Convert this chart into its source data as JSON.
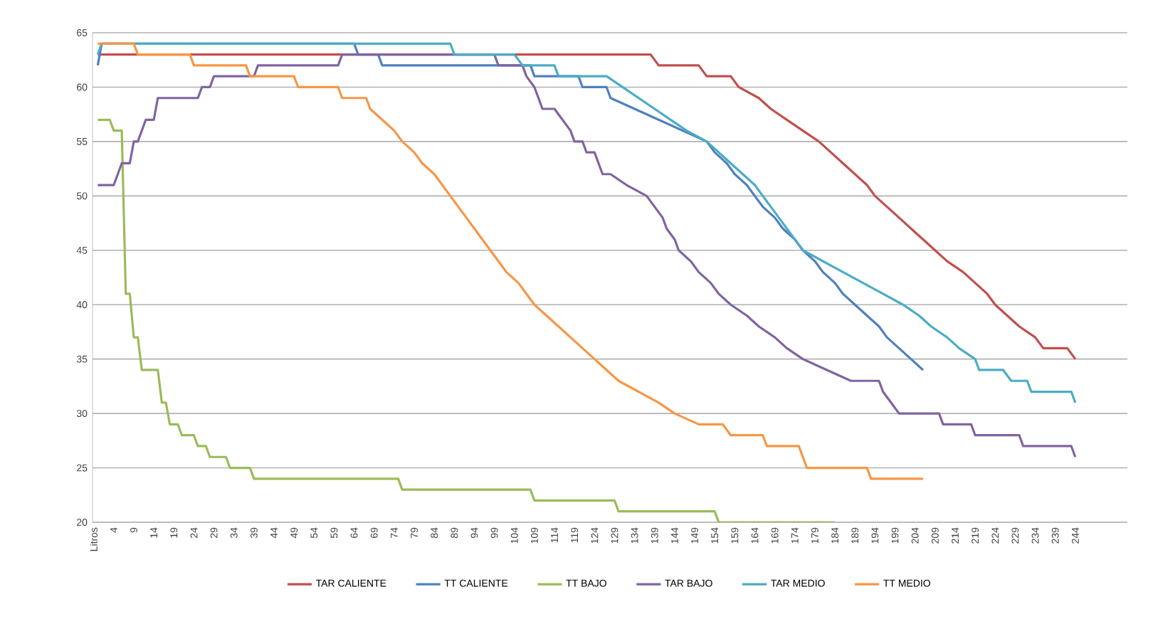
{
  "chart_data": {
    "type": "line",
    "xlim": [
      -1.3,
      257
    ],
    "xticks": [
      {
        "value": -1,
        "label": "Litros"
      },
      4,
      9,
      14,
      19,
      24,
      29,
      34,
      39,
      44,
      49,
      54,
      59,
      64,
      69,
      74,
      79,
      84,
      89,
      94,
      99,
      104,
      109,
      114,
      119,
      124,
      129,
      134,
      139,
      144,
      149,
      154,
      159,
      164,
      169,
      174,
      179,
      184,
      189,
      194,
      199,
      204,
      209,
      214,
      219,
      224,
      229,
      234,
      239,
      244
    ],
    "ylim": [
      20,
      65
    ],
    "yticks": [
      20,
      25,
      30,
      35,
      40,
      45,
      50,
      55,
      60,
      65
    ],
    "grid": "y",
    "legend": "bottom",
    "marker": "none",
    "series": [
      {
        "name": "TAR CALIENTE",
        "color": "#c0504d",
        "x": [
          0,
          138,
          140,
          150,
          152,
          158,
          160,
          165,
          168,
          172,
          176,
          180,
          183,
          186,
          189,
          192,
          194,
          197,
          200,
          203,
          206,
          209,
          212,
          216,
          219,
          222,
          224,
          227,
          230,
          234,
          236,
          242,
          244
        ],
        "values": [
          63,
          63,
          62,
          62,
          61,
          61,
          60,
          59,
          58,
          57,
          56,
          55,
          54,
          53,
          52,
          51,
          50,
          49,
          48,
          47,
          46,
          45,
          44,
          43,
          42,
          41,
          40,
          39,
          38,
          37,
          36,
          36,
          35
        ]
      },
      {
        "name": "TT CALIENTE",
        "color": "#4f81bd",
        "x": [
          0,
          1,
          64,
          65,
          70,
          71,
          108,
          109,
          120,
          121,
          127,
          128,
          134,
          140,
          146,
          152,
          154,
          157,
          159,
          162,
          164,
          166,
          169,
          171,
          174,
          176,
          179,
          181,
          184,
          186,
          189,
          192,
          195,
          197,
          200,
          203,
          206
        ],
        "values": [
          62,
          64,
          64,
          63,
          63,
          62,
          62,
          61,
          61,
          60,
          60,
          59,
          58,
          57,
          56,
          55,
          54,
          53,
          52,
          51,
          50,
          49,
          48,
          47,
          46,
          45,
          44,
          43,
          42,
          41,
          40,
          39,
          38,
          37,
          36,
          35,
          34
        ]
      },
      {
        "name": "TT BAJO",
        "color": "#9bbb59",
        "x": [
          0,
          3,
          4,
          6,
          7,
          8,
          9,
          10,
          11,
          15,
          16,
          17,
          18,
          20,
          21,
          24,
          25,
          27,
          28,
          32,
          33,
          38,
          39,
          75,
          76,
          108,
          109,
          129,
          130,
          154,
          155,
          184
        ],
        "values": [
          57,
          57,
          56,
          56,
          41,
          41,
          37,
          37,
          34,
          34,
          31,
          31,
          29,
          29,
          28,
          28,
          27,
          27,
          26,
          26,
          25,
          25,
          24,
          24,
          23,
          23,
          22,
          22,
          21,
          21,
          20,
          20
        ]
      },
      {
        "name": "TAR BAJO",
        "color": "#8064a2",
        "x": [
          0,
          4,
          5,
          6,
          8,
          9,
          10,
          11,
          12,
          14,
          15,
          25,
          26,
          28,
          29,
          39,
          40,
          60,
          61,
          99,
          100,
          106,
          107,
          109,
          110,
          111,
          114,
          116,
          118,
          119,
          121,
          122,
          124,
          125,
          126,
          128,
          132,
          137,
          139,
          141,
          142,
          144,
          145,
          148,
          150,
          153,
          155,
          158,
          162,
          165,
          169,
          172,
          176,
          182,
          188,
          195,
          196,
          198,
          200,
          210,
          211,
          218,
          219,
          230,
          231,
          243,
          244
        ],
        "values": [
          51,
          51,
          52,
          53,
          53,
          55,
          55,
          56,
          57,
          57,
          59,
          59,
          60,
          60,
          61,
          61,
          62,
          62,
          63,
          63,
          62,
          62,
          61,
          60,
          59,
          58,
          58,
          57,
          56,
          55,
          55,
          54,
          54,
          53,
          52,
          52,
          51,
          50,
          49,
          48,
          47,
          46,
          45,
          44,
          43,
          42,
          41,
          40,
          39,
          38,
          37,
          36,
          35,
          34,
          33,
          33,
          32,
          31,
          30,
          30,
          29,
          29,
          28,
          28,
          27,
          27,
          26
        ]
      },
      {
        "name": "TAR MEDIO",
        "color": "#4bacc6",
        "x": [
          0,
          1,
          88,
          89,
          104,
          106,
          114,
          115,
          127,
          131,
          135,
          139,
          143,
          147,
          152,
          155,
          158,
          161,
          164,
          166,
          168,
          170,
          172,
          174,
          176,
          181,
          186,
          191,
          196,
          201,
          205,
          208,
          212,
          215,
          219,
          220,
          226,
          228,
          232,
          233,
          243,
          244
        ],
        "values": [
          63,
          64,
          64,
          63,
          63,
          62,
          62,
          61,
          61,
          60,
          59,
          58,
          57,
          56,
          55,
          54,
          53,
          52,
          51,
          50,
          49,
          48,
          47,
          46,
          45,
          44,
          43,
          42,
          41,
          40,
          39,
          38,
          37,
          36,
          35,
          34,
          34,
          33,
          33,
          32,
          32,
          31
        ]
      },
      {
        "name": "TT MEDIO",
        "color": "#f79646",
        "x": [
          0,
          9,
          10,
          23,
          24,
          37,
          38,
          49,
          50,
          60,
          61,
          67,
          68,
          71,
          74,
          76,
          79,
          81,
          84,
          86,
          88,
          90,
          92,
          94,
          96,
          98,
          100,
          102,
          105,
          107,
          109,
          112,
          115,
          118,
          121,
          124,
          127,
          130,
          135,
          140,
          144,
          150,
          156,
          158,
          166,
          167,
          175,
          176,
          177,
          192,
          193,
          206
        ],
        "values": [
          64,
          64,
          63,
          63,
          62,
          62,
          61,
          61,
          60,
          60,
          59,
          59,
          58,
          57,
          56,
          55,
          54,
          53,
          52,
          51,
          50,
          49,
          48,
          47,
          46,
          45,
          44,
          43,
          42,
          41,
          40,
          39,
          38,
          37,
          36,
          35,
          34,
          33,
          32,
          31,
          30,
          29,
          29,
          28,
          28,
          27,
          27,
          26,
          25,
          25,
          24,
          24
        ]
      }
    ]
  }
}
